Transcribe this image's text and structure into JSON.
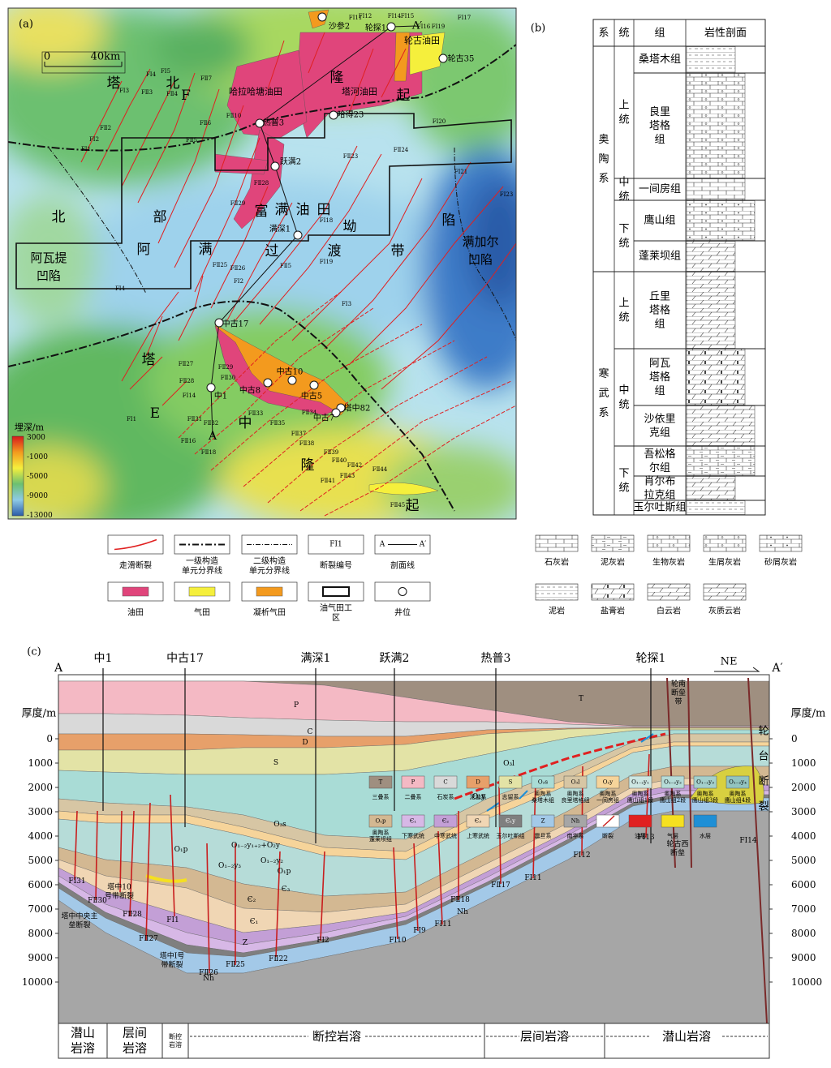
{
  "panel_a": {
    "label": "(a)",
    "scale_bar": [
      "0",
      "40km"
    ],
    "place_labels": [
      "塔",
      "北",
      "隆",
      "起",
      "北",
      "部",
      "坳",
      "陷",
      "阿",
      "满",
      "过",
      "渡",
      "带",
      "富",
      "满",
      "油",
      "田",
      "阿瓦提",
      "凹陷",
      "满加尔",
      "凹陷",
      "塔",
      "中",
      "隆",
      "起",
      "E",
      "F"
    ],
    "field_labels": [
      "哈拉哈塘油田",
      "塔河油田",
      "轮古油田"
    ],
    "wells": [
      "沙参2",
      "轮探1",
      "轮古35",
      "热普3",
      "哈得23",
      "跃满2",
      "满深1",
      "中古17",
      "中古10",
      "中古8",
      "中古5",
      "中1",
      "塔中82",
      "中古7"
    ],
    "section_ends": [
      "A",
      "A′"
    ],
    "fault_labels": [
      "FⅠ1",
      "FⅠ2",
      "FⅡ2",
      "FⅠ3",
      "FⅡ3",
      "FⅠ4",
      "FⅡ4",
      "FⅠ5",
      "FⅡ5",
      "FⅡ6",
      "FⅡ7",
      "FⅡ10",
      "FⅠ11",
      "FⅠ12",
      "FⅠ14",
      "FⅠ15",
      "FⅠ16",
      "FⅠ19",
      "FⅠ17",
      "FⅠ20",
      "FⅠ21",
      "FⅠ23",
      "FⅡ24",
      "FⅡ23",
      "FⅠ18",
      "FⅠ19",
      "FⅡ29",
      "FⅡ28",
      "FⅡ25",
      "FⅡ26",
      "FⅠ2",
      "FⅠ4",
      "FⅠ3",
      "FⅡ5",
      "FⅡ27",
      "FⅡ28",
      "FⅡ29",
      "FⅡ30",
      "FⅠ14",
      "FⅡ31",
      "FⅡ32",
      "FⅡ33",
      "FⅡ34",
      "FⅡ35",
      "FⅡ37",
      "FⅡ38",
      "FⅡ39",
      "FⅡ40",
      "FⅡ41",
      "FⅡ42",
      "FⅡ43",
      "FⅡ44",
      "FⅡ45",
      "FⅡ16",
      "FⅡ18",
      "FⅠ1"
    ],
    "depth_scale": {
      "title": "埋深/m",
      "ticks": [
        3000,
        -1000,
        -5000,
        -9000,
        -13000
      ]
    }
  },
  "legend_a": [
    {
      "name": "走滑断裂"
    },
    {
      "name": "一级构造单元分界线"
    },
    {
      "name": "二级构造单元分界线"
    },
    {
      "name": "断裂编号",
      "symbol": "FⅠ1"
    },
    {
      "name": "剖面线",
      "symbol": [
        "A",
        "A′"
      ]
    },
    {
      "name": "油田",
      "color": "#e0457b"
    },
    {
      "name": "气田",
      "color": "#f5ef3c"
    },
    {
      "name": "凝析气田",
      "color": "#f39a1e"
    },
    {
      "name": "油气田工区"
    },
    {
      "name": "井位"
    }
  ],
  "panel_b": {
    "label": "(b)",
    "headers": [
      "系",
      "统",
      "组",
      "岩性剖面"
    ],
    "systems": [
      {
        "name": "奥陶系",
        "series": [
          {
            "name": "上统",
            "formations": [
              "桑塔木组",
              "良里塔格组"
            ]
          },
          {
            "name": "中统",
            "formations": [
              "一间房组"
            ]
          },
          {
            "name": "下统",
            "formations": [
              "鹰山组",
              "蓬莱坝组"
            ]
          }
        ]
      },
      {
        "name": "寒武系",
        "series": [
          {
            "name": "上统",
            "formations": [
              "丘里塔格组"
            ]
          },
          {
            "name": "中统",
            "formations": [
              "阿瓦塔格组",
              "沙依里克组"
            ]
          },
          {
            "name": "下统",
            "formations": [
              "吾松格尔组",
              "肖尔布拉克组",
              "玉尔吐斯组"
            ]
          }
        ]
      }
    ]
  },
  "legend_b": [
    "石灰岩",
    "泥灰岩",
    "生物灰岩",
    "生屑灰岩",
    "砂屑灰岩",
    "泥岩",
    "盐膏岩",
    "白云岩",
    "灰质云岩"
  ],
  "panel_c": {
    "label": "(c)",
    "section_ends": [
      "A",
      "A′"
    ],
    "direction": "NE",
    "wells": [
      "中1",
      "中古17",
      "满深1",
      "跃满2",
      "热普3",
      "轮探1"
    ],
    "depth_axis": {
      "title": "厚度/m",
      "ticks": [
        0,
        1000,
        2000,
        3000,
        4000,
        5000,
        6000,
        7000,
        8000,
        9000,
        10000
      ]
    },
    "strata_labels": [
      "T",
      "P",
      "C",
      "D",
      "S",
      "O₃s",
      "O₂y",
      "O₃l",
      "O₁p",
      "O₁p",
      "Є₃",
      "Є₂",
      "Є₁",
      "Z",
      "Nh",
      "Nh",
      "O₁₋₂y₁₊₂+O₂y",
      "O₁₋₂y₃",
      "O₁₋₂y₂"
    ],
    "fault_labels": [
      "FⅠ31",
      "FⅡ30",
      "塔中中央主垒断裂",
      "塔中10号带断裂",
      "FⅡ28",
      "FⅡ27",
      "FⅠ1",
      "塔中Ⅰ号带断裂",
      "FⅡ26",
      "FⅡ25",
      "FⅡ22",
      "FⅠ2",
      "FⅠ10",
      "FⅠ9",
      "FⅠ11",
      "FⅡ18",
      "FⅡ17",
      "FⅠ11",
      "FⅠ12",
      "FⅠ13",
      "FⅠ14",
      "轮南断垒带",
      "轮古西断垒",
      "轮台断裂"
    ],
    "legend": [
      {
        "code": "T",
        "name": "三叠系",
        "color": "#9f8f80"
      },
      {
        "code": "P",
        "name": "二叠系",
        "color": "#f4b9c4"
      },
      {
        "code": "C",
        "name": "石炭系",
        "color": "#d9d9d9"
      },
      {
        "code": "D",
        "name": "泥盆系",
        "color": "#e7a06a"
      },
      {
        "code": "S",
        "name": "志留系",
        "color": "#e3e3a6"
      },
      {
        "code": "O₃s",
        "name": "奥陶系桑塔木组",
        "color": "#a9dcd6"
      },
      {
        "code": "O₃l",
        "name": "奥陶系良里塔格组",
        "color": "#d7c6a4"
      },
      {
        "code": "O₂y",
        "name": "奥陶系一间房组",
        "color": "#f6d49a"
      },
      {
        "code": "O₁₋₂y₁",
        "name": "奥陶系鹰山组1段",
        "color": "#cde6e2"
      },
      {
        "code": "O₁₋₂y₂",
        "name": "奥陶系鹰山组2段",
        "color": "#b6dcd8"
      },
      {
        "code": "O₁₋₂y₃",
        "name": "奥陶系鹰山组3段",
        "color": "#a4d0cc"
      },
      {
        "code": "O₁₋₂y₄",
        "name": "奥陶系鹰山组4段",
        "color": "#92c4c0"
      },
      {
        "code": "O₁p",
        "name": "奥陶系蓬莱坝组",
        "color": "#d3b892"
      },
      {
        "code": "Є₁",
        "name": "下寒武统",
        "color": "#d7b8e6"
      },
      {
        "code": "Є₂",
        "name": "中寒武统",
        "color": "#c39fd6"
      },
      {
        "code": "Є₃",
        "name": "上寒武统",
        "color": "#f0d6b4"
      },
      {
        "code": "Є₁y",
        "name": "玉尔吐斯组",
        "color": "#7f7f7f"
      },
      {
        "code": "Z",
        "name": "震旦系",
        "color": "#a3c9e8"
      },
      {
        "code": "Nh",
        "name": "南华系",
        "color": "#a6a6a6"
      },
      {
        "name": "断裂",
        "color": "#ffffff"
      },
      {
        "name": "油层",
        "color": "#e02020"
      },
      {
        "name": "气层",
        "color": "#f5e020"
      },
      {
        "name": "水层",
        "color": "#1e8fd6"
      }
    ],
    "karst_zones": [
      "潜山岩溶",
      "层间岩溶",
      "断控岩溶",
      "断控岩溶",
      "层间岩溶",
      "潜山岩溶"
    ]
  }
}
